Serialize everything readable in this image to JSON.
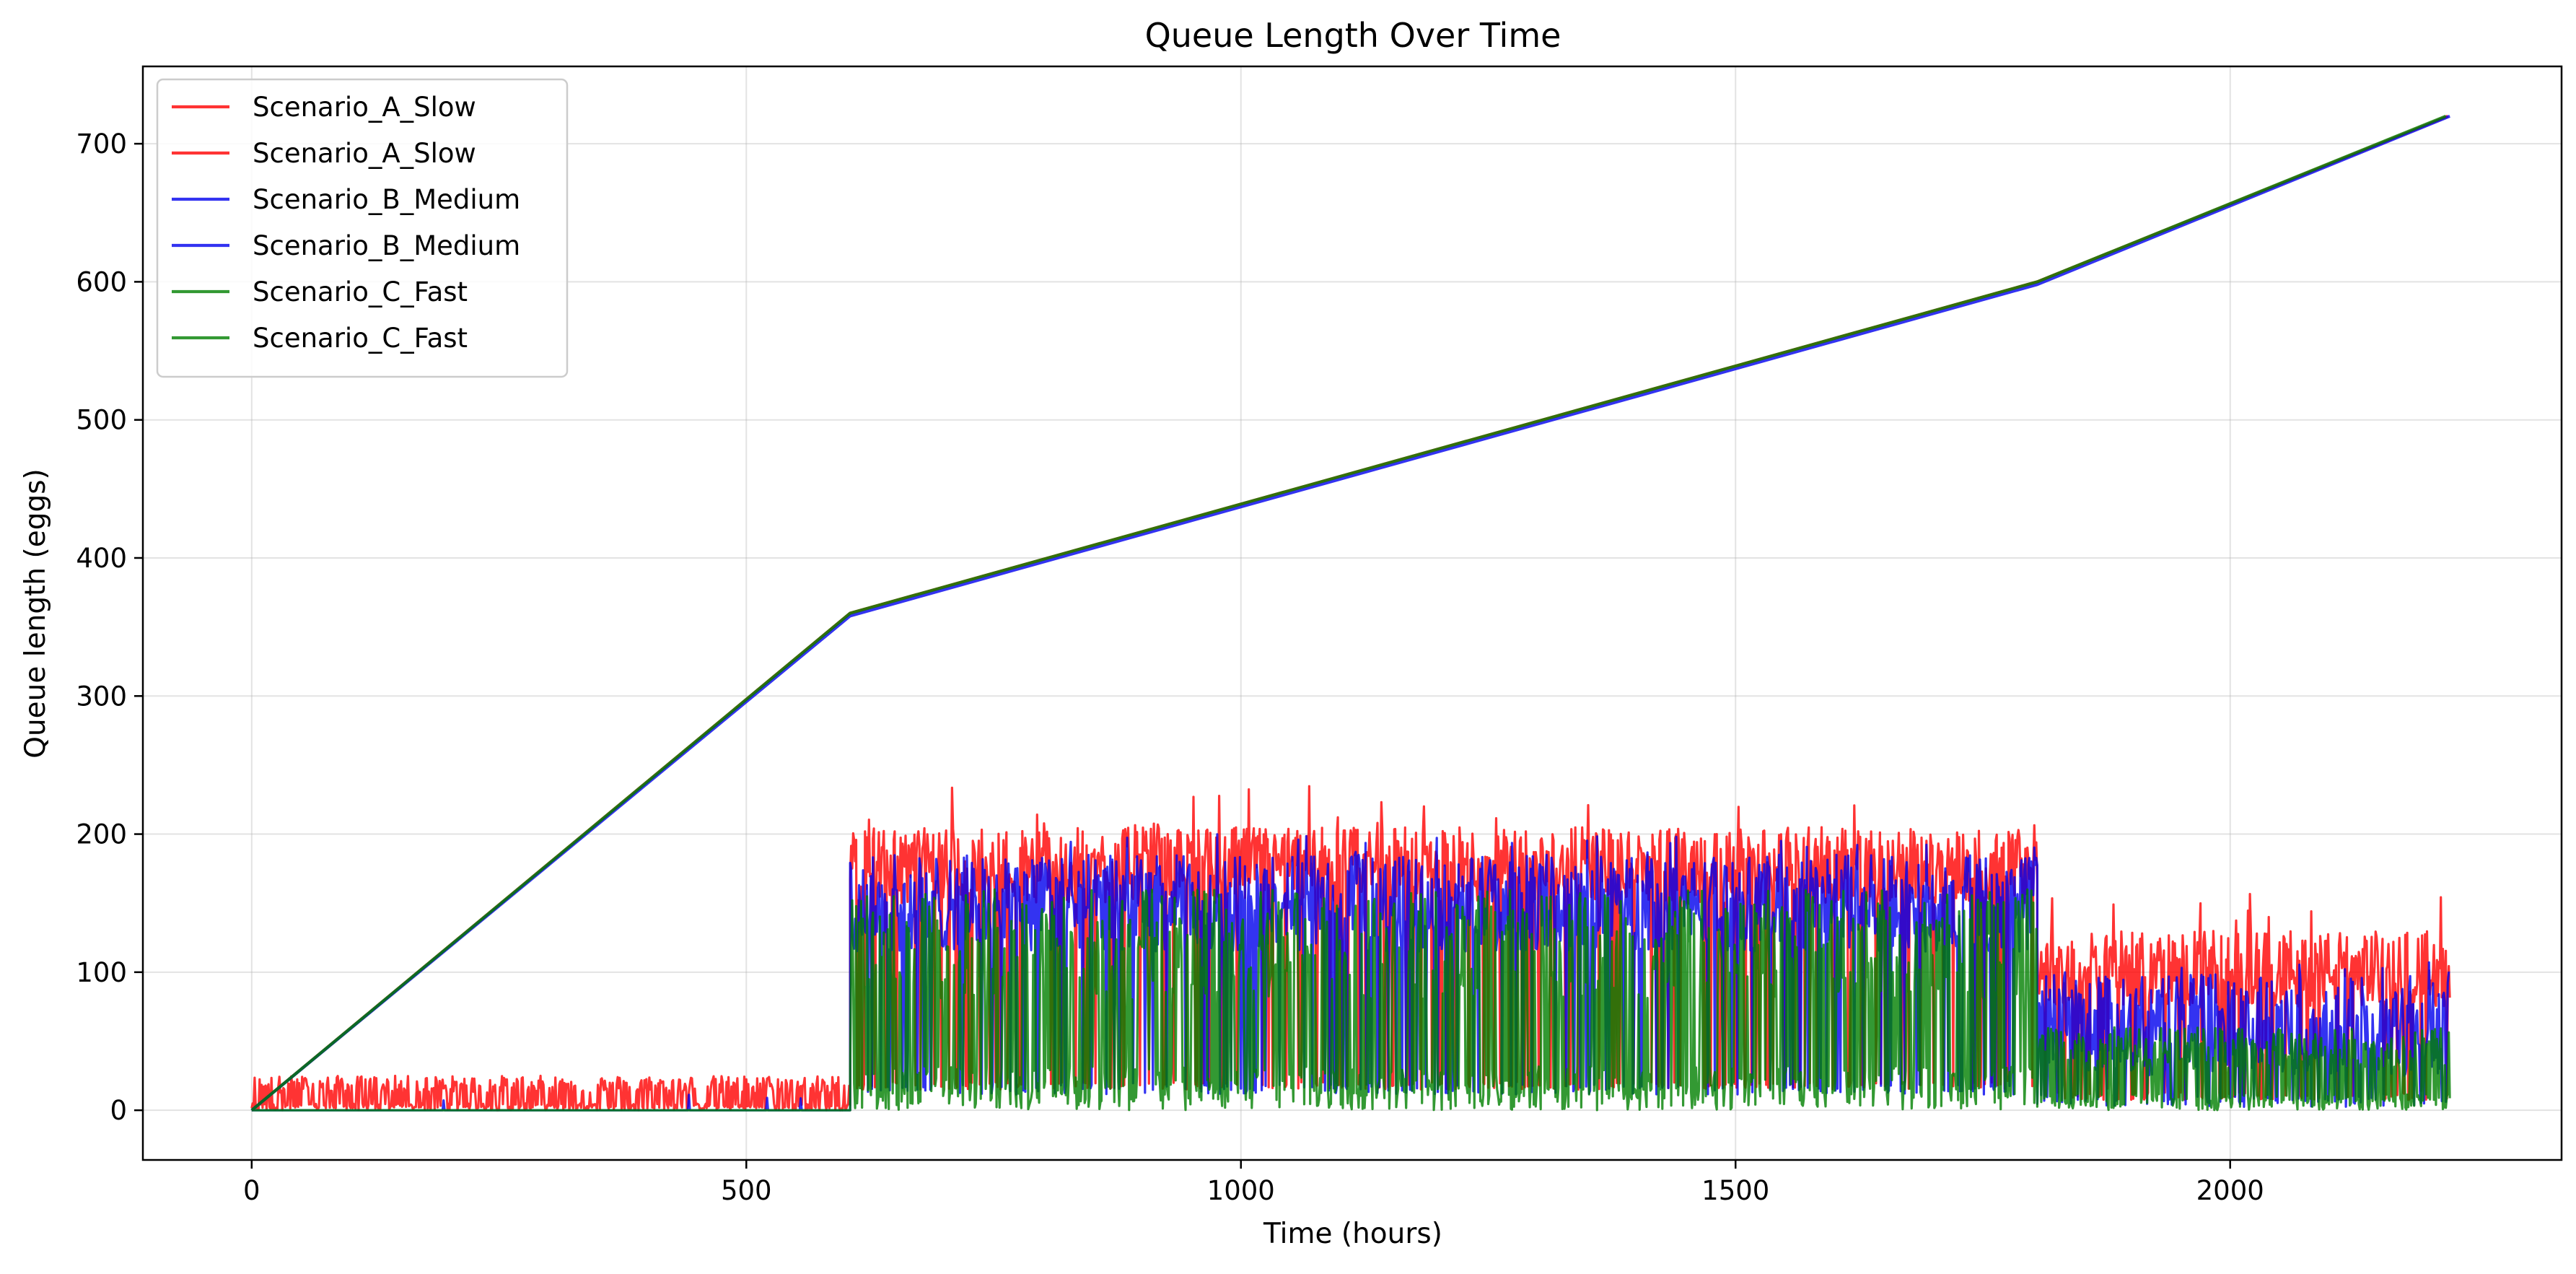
{
  "chart_data": {
    "type": "line",
    "title": "Queue Length Over Time",
    "xlabel": "Time (hours)",
    "ylabel": "Queue length (eggs)",
    "xlim": [
      -110,
      2335
    ],
    "ylim": [
      -36,
      756
    ],
    "xticks": [
      0,
      500,
      1000,
      1500,
      2000
    ],
    "yticks": [
      0,
      100,
      200,
      300,
      400,
      500,
      600,
      700
    ],
    "grid": true,
    "legend_position": "top-left",
    "phases_x": [
      0,
      605,
      1805,
      2222
    ],
    "series": [
      {
        "name": "Scenario_A_Slow",
        "kind": "cumulative",
        "color": "#ff0000",
        "x": [
          0,
          605,
          1805,
          2220
        ],
        "y": [
          0,
          360,
          600,
          720
        ]
      },
      {
        "name": "Scenario_A_Slow",
        "kind": "fluctuating",
        "color": "#ff0000",
        "bands": [
          {
            "x0": 0,
            "x1": 605,
            "low": 0,
            "high": 25,
            "peak": 50
          },
          {
            "x0": 605,
            "x1": 1805,
            "low": 150,
            "high": 205,
            "peak": 236
          },
          {
            "x0": 1805,
            "x1": 2222,
            "low": 75,
            "high": 130,
            "peak": 162
          }
        ]
      },
      {
        "name": "Scenario_B_Medium",
        "kind": "cumulative",
        "color": "#0000ee",
        "x": [
          0,
          605,
          1805,
          2222
        ],
        "y": [
          0,
          358,
          598,
          720
        ]
      },
      {
        "name": "Scenario_B_Medium",
        "kind": "fluctuating",
        "color": "#0000ee",
        "bands": [
          {
            "x0": 0,
            "x1": 605,
            "low": 0,
            "high": 0,
            "peak": 14
          },
          {
            "x0": 605,
            "x1": 1805,
            "low": 115,
            "high": 185,
            "peak": 200
          },
          {
            "x0": 1805,
            "x1": 2222,
            "low": 25,
            "high": 100,
            "peak": 110
          }
        ]
      },
      {
        "name": "Scenario_C_Fast",
        "kind": "cumulative",
        "color": "#008000",
        "x": [
          0,
          605,
          1805,
          2218
        ],
        "y": [
          0,
          360,
          600,
          720
        ]
      },
      {
        "name": "Scenario_C_Fast",
        "kind": "fluctuating",
        "color": "#008000",
        "bands": [
          {
            "x0": 0,
            "x1": 605,
            "low": 0,
            "high": 0,
            "peak": 0
          },
          {
            "x0": 605,
            "x1": 1805,
            "low": 0,
            "high": 160,
            "peak": 175
          },
          {
            "x0": 1805,
            "x1": 2222,
            "low": 0,
            "high": 60,
            "peak": 70
          }
        ]
      }
    ]
  }
}
